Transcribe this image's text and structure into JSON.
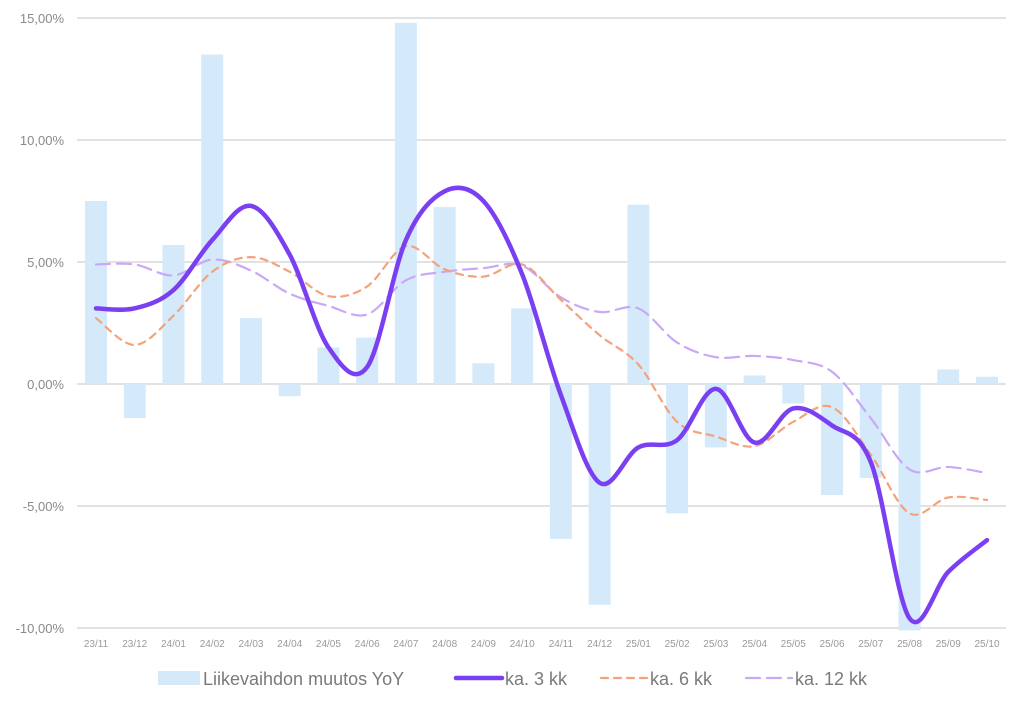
{
  "chart_data": {
    "type": "bar+line",
    "title": "",
    "xlabel": "",
    "ylabel": "",
    "ylim": [
      -10,
      15
    ],
    "y_ticks": [
      15,
      10,
      5,
      0,
      -5,
      -10
    ],
    "y_tick_labels": [
      "15,00%",
      "10,00%",
      "5,00%",
      "0,00%",
      "-5,00%",
      "-10,00%"
    ],
    "grid": true,
    "legend_position": "bottom",
    "categories": [
      "23/11",
      "23/12",
      "24/01",
      "24/02",
      "24/03",
      "24/04",
      "24/05",
      "24/06",
      "24/07",
      "24/08",
      "24/09",
      "24/10",
      "24/11",
      "24/12",
      "25/01",
      "25/02",
      "25/03",
      "25/04",
      "25/05",
      "25/06",
      "25/07",
      "25/08",
      "25/09",
      "25/10"
    ],
    "series": [
      {
        "name": "Liikevaihdon muutos YoY",
        "kind": "bar",
        "color": "#d4eafb",
        "values": [
          7.5,
          -1.4,
          5.7,
          13.5,
          2.7,
          -0.5,
          1.5,
          1.9,
          14.8,
          7.25,
          0.85,
          3.1,
          -6.35,
          -9.05,
          7.35,
          -5.3,
          -2.6,
          0.35,
          -0.8,
          -4.55,
          -3.85,
          -10.1,
          0.6,
          0.3
        ]
      },
      {
        "name": "ka. 3 kk",
        "kind": "line",
        "style": "solid",
        "color": "#7b3ff2",
        "values": [
          3.1,
          3.1,
          3.85,
          5.9,
          7.3,
          5.3,
          1.5,
          0.7,
          5.9,
          7.9,
          7.5,
          4.5,
          -0.45,
          -4.05,
          -2.6,
          -2.3,
          -0.2,
          -2.4,
          -1.0,
          -1.7,
          -3.2,
          -9.6,
          -7.7,
          -6.4
        ]
      },
      {
        "name": "ka. 6 kk",
        "kind": "line",
        "style": "short-dash",
        "color": "#f5a27a",
        "values": [
          2.7,
          1.6,
          2.8,
          4.6,
          5.2,
          4.6,
          3.6,
          4.0,
          5.65,
          4.7,
          4.4,
          4.9,
          3.45,
          2.0,
          0.8,
          -1.55,
          -2.15,
          -2.55,
          -1.55,
          -0.95,
          -2.9,
          -5.3,
          -4.65,
          -4.75
        ]
      },
      {
        "name": "ka. 12 kk",
        "kind": "line",
        "style": "long-dash",
        "color": "#c9a8f7",
        "values": [
          4.9,
          4.9,
          4.45,
          5.1,
          4.65,
          3.7,
          3.2,
          2.85,
          4.25,
          4.6,
          4.75,
          4.85,
          3.55,
          2.95,
          3.1,
          1.7,
          1.1,
          1.15,
          0.98,
          0.5,
          -1.4,
          -3.5,
          -3.4,
          -3.65
        ]
      }
    ]
  }
}
